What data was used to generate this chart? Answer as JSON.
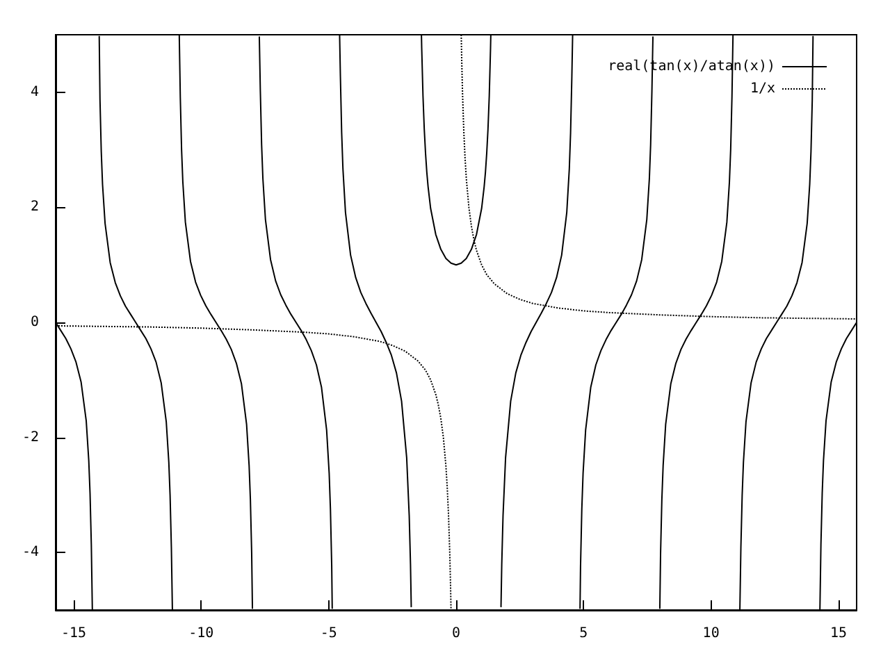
{
  "chart_data": {
    "type": "line",
    "xlim": [
      -15.71,
      15.71
    ],
    "xticks": [
      -15,
      -10,
      -5,
      0,
      5,
      10,
      15
    ],
    "ylim": [
      -5,
      5
    ],
    "yticks": [
      -4,
      -2,
      0,
      2,
      4
    ],
    "legend": "top right",
    "series": [
      {
        "name": "real(tan(x)/atan(x))",
        "color": "#000000",
        "line_style": "solid",
        "x": [
          -15.71,
          -15.51,
          -15.31,
          -15.11,
          -14.91,
          -14.71,
          -14.51,
          -14.41,
          -14.36,
          -14.31,
          -14.27,
          -14.14,
          -14.0,
          -13.97,
          -13.92,
          -13.87,
          -13.77,
          -13.57,
          -13.37,
          -13.17,
          -12.97,
          -12.77,
          -12.57,
          -12.37,
          -12.17,
          -11.97,
          -11.77,
          -11.57,
          -11.37,
          -11.27,
          -11.22,
          -11.17,
          -11.13,
          -11.0,
          -10.86,
          -10.82,
          -10.77,
          -10.72,
          -10.62,
          -10.42,
          -10.22,
          -10.02,
          -9.82,
          -9.62,
          -9.42,
          -9.22,
          -9.02,
          -8.82,
          -8.62,
          -8.42,
          -8.22,
          -8.12,
          -8.07,
          -8.02,
          -7.99,
          -7.85,
          -7.72,
          -7.68,
          -7.63,
          -7.58,
          -7.48,
          -7.28,
          -7.08,
          -6.88,
          -6.68,
          -6.48,
          -6.28,
          -6.08,
          -5.88,
          -5.68,
          -5.48,
          -5.28,
          -5.08,
          -4.98,
          -4.93,
          -4.88,
          -4.86,
          -4.71,
          -4.57,
          -4.54,
          -4.49,
          -4.44,
          -4.34,
          -4.14,
          -3.94,
          -3.74,
          -3.54,
          -3.34,
          -3.14,
          -2.94,
          -2.74,
          -2.54,
          -2.34,
          -2.14,
          -1.94,
          -1.84,
          -1.79,
          -1.76,
          -1.57,
          -1.36,
          -1.35,
          -1.3,
          -1.25,
          -1.2,
          -1.15,
          -1.1,
          -1,
          -0.8,
          -0.6,
          -0.4,
          -0.2,
          0,
          0.2,
          0.4,
          0.6,
          0.8,
          1,
          1.1,
          1.15,
          1.2,
          1.25,
          1.3,
          1.35,
          1.36,
          1.57,
          1.76,
          1.79,
          1.84,
          1.94,
          2.14,
          2.34,
          2.54,
          2.74,
          2.94,
          3.14,
          3.34,
          3.54,
          3.74,
          3.94,
          4.14,
          4.34,
          4.44,
          4.49,
          4.54,
          4.57,
          4.71,
          4.86,
          4.88,
          4.93,
          4.98,
          5.08,
          5.28,
          5.48,
          5.68,
          5.88,
          6.08,
          6.28,
          6.48,
          6.68,
          6.88,
          7.08,
          7.28,
          7.48,
          7.58,
          7.63,
          7.68,
          7.72,
          7.85,
          7.99,
          8.02,
          8.07,
          8.12,
          8.22,
          8.42,
          8.62,
          8.82,
          9.02,
          9.22,
          9.42,
          9.62,
          9.82,
          10.02,
          10.22,
          10.42,
          10.62,
          10.72,
          10.77,
          10.82,
          10.86,
          11.0,
          11.13,
          11.17,
          11.22,
          11.27,
          11.37,
          11.57,
          11.77,
          11.97,
          12.17,
          12.37,
          12.57,
          12.77,
          12.97,
          13.17,
          13.37,
          13.57,
          13.77,
          13.87,
          13.92,
          13.97,
          14.0,
          14.14,
          14.27,
          14.31,
          14.36,
          14.41,
          14.51,
          14.71,
          14.91,
          15.11,
          15.31,
          15.51,
          15.71
        ],
        "values": [
          0,
          -0.14,
          -0.28,
          -0.46,
          -0.69,
          -1.04,
          -1.71,
          -2.4,
          -2.97,
          -3.86,
          -4.99,
          null,
          4.98,
          3.87,
          2.97,
          2.4,
          1.72,
          1.04,
          0.69,
          0.46,
          0.28,
          0.14,
          0,
          -0.14,
          -0.28,
          -0.46,
          -0.69,
          -1.05,
          -1.73,
          -2.43,
          -3.01,
          -3.91,
          -4.99,
          null,
          4.99,
          3.92,
          3.01,
          2.44,
          1.74,
          1.06,
          0.7,
          0.47,
          0.29,
          0.14,
          0,
          -0.14,
          -0.29,
          -0.47,
          -0.71,
          -1.07,
          -1.77,
          -2.49,
          -3.08,
          -4.01,
          -4.98,
          null,
          4.97,
          4.02,
          3.09,
          2.5,
          1.79,
          1.09,
          0.72,
          0.48,
          0.3,
          0.14,
          0,
          -0.14,
          -0.3,
          -0.49,
          -0.74,
          -1.13,
          -1.87,
          -2.62,
          -3.25,
          -4.24,
          -4.98,
          null,
          4.99,
          4.28,
          3.3,
          2.67,
          1.91,
          1.17,
          0.78,
          0.52,
          0.33,
          0.16,
          0,
          -0.16,
          -0.35,
          -0.57,
          -0.88,
          -1.37,
          -2.35,
          -3.36,
          -4.2,
          -4.95,
          null,
          4.99,
          4.77,
          3.94,
          3.36,
          2.94,
          2.61,
          2.36,
          1.98,
          1.53,
          1.27,
          1.11,
          1.03,
          1,
          1.03,
          1.11,
          1.27,
          1.53,
          1.98,
          2.36,
          2.61,
          2.94,
          3.36,
          3.94,
          4.77,
          4.99,
          null,
          -4.95,
          -4.2,
          -3.36,
          -2.35,
          -1.37,
          -0.88,
          -0.57,
          -0.35,
          -0.16,
          0,
          0.16,
          0.33,
          0.52,
          0.78,
          1.17,
          1.91,
          2.67,
          3.3,
          4.28,
          4.99,
          null,
          -4.98,
          -4.24,
          -3.25,
          -2.62,
          -1.87,
          -1.13,
          -0.74,
          -0.49,
          -0.3,
          -0.14,
          0,
          0.14,
          0.3,
          0.48,
          0.72,
          1.09,
          1.79,
          2.5,
          3.09,
          4.02,
          4.97,
          null,
          -4.98,
          -4.01,
          -3.08,
          -2.49,
          -1.77,
          -1.07,
          -0.71,
          -0.47,
          -0.29,
          -0.14,
          0,
          0.14,
          0.29,
          0.47,
          0.7,
          1.06,
          1.74,
          2.44,
          3.01,
          3.92,
          4.99,
          null,
          -4.99,
          -3.91,
          -3.01,
          -2.43,
          -1.73,
          -1.05,
          -0.69,
          -0.46,
          -0.28,
          -0.14,
          0,
          0.14,
          0.28,
          0.46,
          0.69,
          1.04,
          1.72,
          2.4,
          2.97,
          3.87,
          4.98,
          null,
          -4.99,
          -3.86,
          -2.97,
          -2.4,
          -1.71,
          -1.04,
          -0.69,
          -0.46,
          -0.28,
          -0.14,
          0
        ]
      },
      {
        "name": "1/x",
        "color": "#000000",
        "line_style": "dotted",
        "x": [
          -15.71,
          -12,
          -10,
          -8,
          -6,
          -5,
          -4,
          -3,
          -2.5,
          -2,
          -1.5,
          -1.2,
          -1,
          -0.8,
          -0.7,
          -0.6,
          -0.5,
          -0.4,
          -0.35,
          -0.3,
          -0.25,
          -0.22,
          -0.2,
          0,
          0.2,
          0.22,
          0.25,
          0.3,
          0.35,
          0.4,
          0.5,
          0.6,
          0.7,
          0.8,
          1,
          1.2,
          1.5,
          2,
          2.5,
          3,
          4,
          5,
          6,
          8,
          10,
          12,
          15.71
        ],
        "values": [
          -0.06,
          -0.08,
          -0.1,
          -0.13,
          -0.17,
          -0.2,
          -0.25,
          -0.33,
          -0.4,
          -0.5,
          -0.67,
          -0.83,
          -1,
          -1.25,
          -1.43,
          -1.67,
          -2,
          -2.5,
          -2.86,
          -3.33,
          -4,
          -4.55,
          -5,
          null,
          5,
          4.55,
          4,
          3.33,
          2.86,
          2.5,
          2,
          1.67,
          1.43,
          1.25,
          1,
          0.83,
          0.67,
          0.5,
          0.4,
          0.33,
          0.25,
          0.2,
          0.17,
          0.13,
          0.1,
          0.08,
          0.06
        ]
      }
    ]
  }
}
